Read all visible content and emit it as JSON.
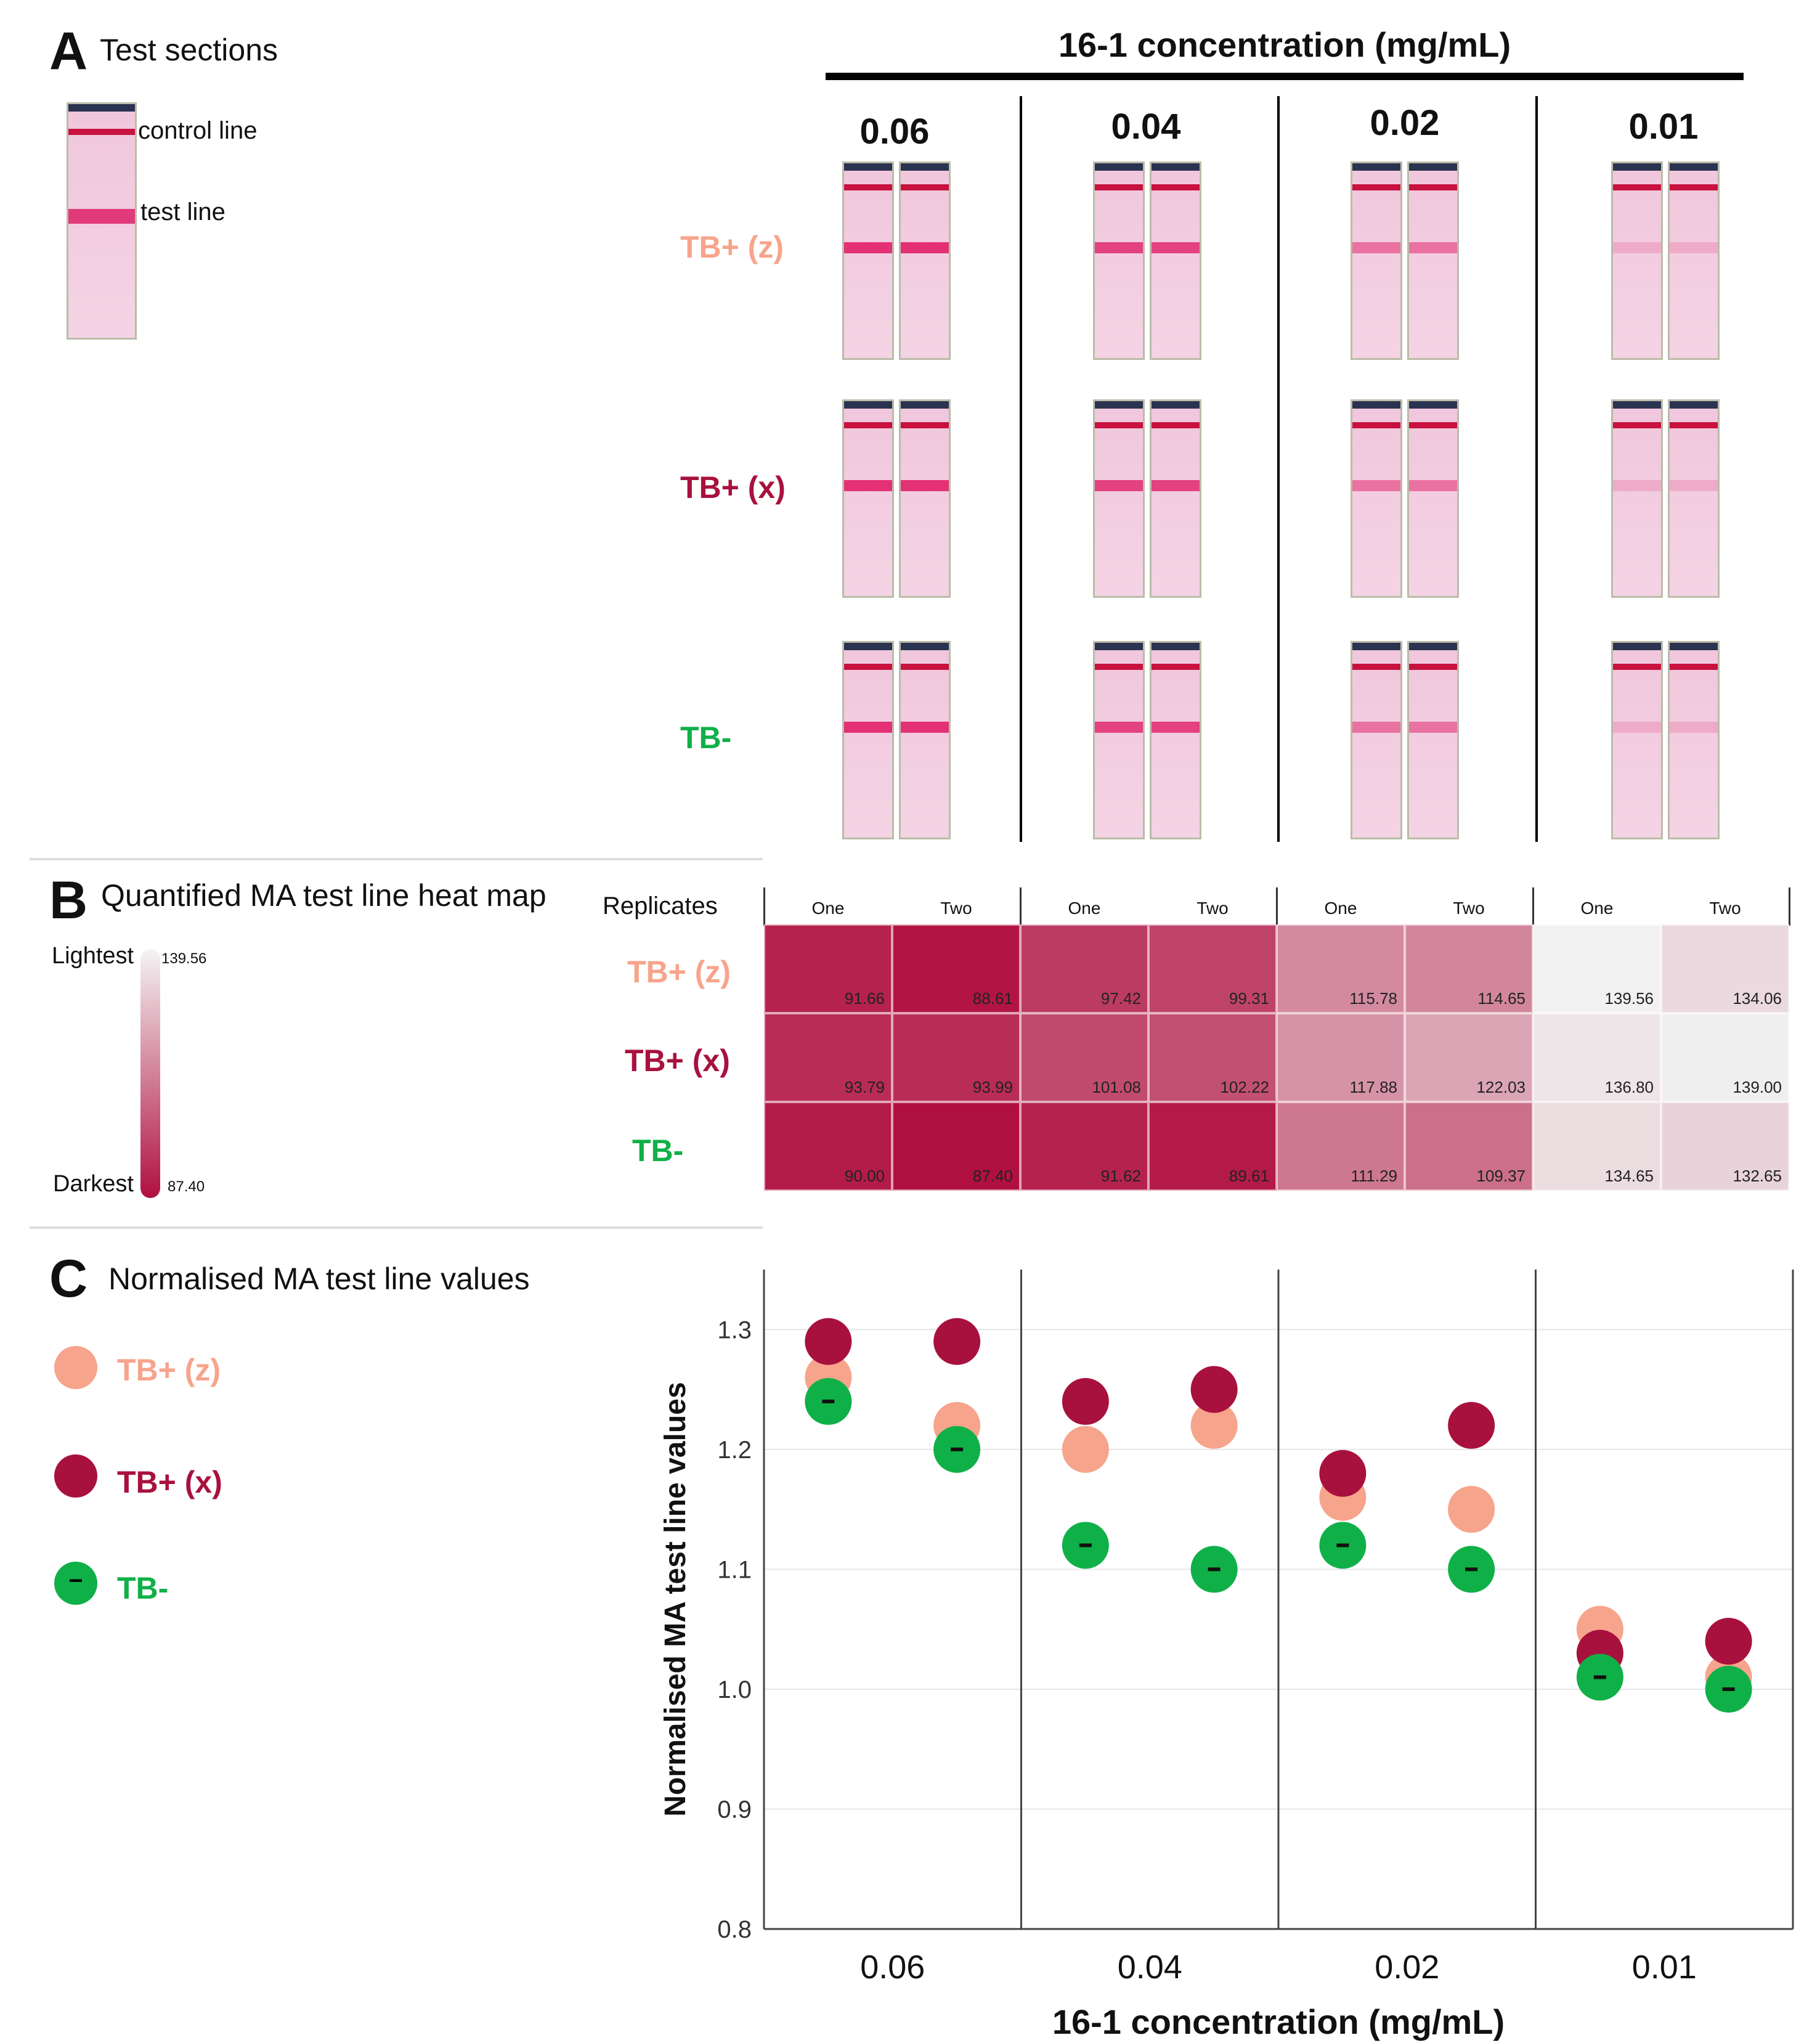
{
  "colors": {
    "tbz": "#f7a48c",
    "tbx": "#a8113e",
    "tbneg": "#10b048",
    "dark": "#b01040",
    "light": "#f1f1f1"
  },
  "panel_a": {
    "letter": "A",
    "title": "Test sections",
    "control_line": "control line",
    "test_line": "test line",
    "header": "16-1 concentration (mg/mL)",
    "concentrations": [
      "0.06",
      "0.04",
      "0.02",
      "0.01"
    ],
    "rows": [
      "TB+ (z)",
      "TB+ (x)",
      "TB-"
    ]
  },
  "panel_b": {
    "letter": "B",
    "title": "Quantified MA test line heat map",
    "replicates_label": "Replicates",
    "replicate_names": [
      "One",
      "Two"
    ],
    "scale_lightest": "Lightest",
    "scale_darkest": "Darkest",
    "scale_max": "139.56",
    "scale_min": "87.40",
    "rows": [
      "TB+ (z)",
      "TB+ (x)",
      "TB-"
    ],
    "values": [
      [
        "91.66",
        "88.61",
        "97.42",
        "99.31",
        "115.78",
        "114.65",
        "139.56",
        "134.06"
      ],
      [
        "93.79",
        "93.99",
        "101.08",
        "102.22",
        "117.88",
        "122.03",
        "136.80",
        "139.00"
      ],
      [
        "90.00",
        "87.40",
        "91.62",
        "89.61",
        "111.29",
        "109.37",
        "134.65",
        "132.65"
      ]
    ]
  },
  "panel_c": {
    "letter": "C",
    "title": "Normalised MA test line values",
    "legend": [
      "TB+ (z)",
      "TB+ (x)",
      "TB-"
    ],
    "neg_symbol": "−"
  },
  "chart_data": {
    "type": "scatter",
    "title": "Normalised MA test line values",
    "xlabel": "16-1 concentration (mg/mL)",
    "ylabel": "Normalised MA test line values",
    "categories": [
      "0.06",
      "0.04",
      "0.02",
      "0.01"
    ],
    "ylim": [
      0.8,
      1.35
    ],
    "yticks": [
      "0.8",
      "0.9",
      "1.0",
      "1.1",
      "1.2",
      "1.3"
    ],
    "series": [
      {
        "name": "TB+ (z)",
        "values": [
          1.26,
          1.22,
          1.2,
          1.22,
          1.16,
          1.15,
          1.05,
          1.01
        ]
      },
      {
        "name": "TB+ (x)",
        "values": [
          1.29,
          1.29,
          1.24,
          1.25,
          1.18,
          1.22,
          1.03,
          1.04
        ]
      },
      {
        "name": "TB-",
        "values": [
          1.24,
          1.2,
          1.12,
          1.1,
          1.12,
          1.1,
          1.01,
          1.0
        ]
      }
    ]
  }
}
